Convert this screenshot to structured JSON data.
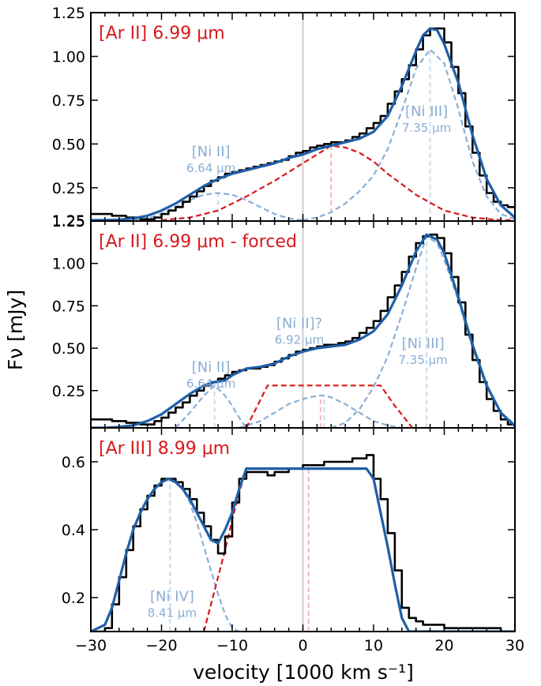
{
  "colors": {
    "observed": "#000000",
    "model_total": "#1f5fa8",
    "nickel_components": "#8aaed6",
    "argon_components": "#d7191c",
    "argon_marker": "#f4b4b4",
    "zero_line": "#cccccc"
  },
  "figure": {
    "xlabel": "velocity [1000 km s⁻¹]",
    "ylabel": "Fν [mJy]"
  },
  "chart_data": [
    {
      "type": "line",
      "panel_label": "[Ar II] 6.99 μm",
      "xlim": [
        -30,
        30
      ],
      "ylim": [
        0.06,
        1.25
      ],
      "yticks": [
        {
          "v": 0.25,
          "label": "0.25"
        },
        {
          "v": 0.5,
          "label": "0.50"
        },
        {
          "v": 0.75,
          "label": "0.75"
        },
        {
          "v": 1.0,
          "label": "1.00"
        },
        {
          "v": 1.25,
          "label": "1.25"
        }
      ],
      "bottom_tick": {
        "v": 0.065,
        "label": "1.25"
      },
      "line_labels": [
        {
          "name": "[Ni II]",
          "wavelength": "6.64 μm",
          "x": -13,
          "y": 0.43
        },
        {
          "name": "[Ni III]",
          "wavelength": "7.35 μm",
          "x": 17.5,
          "y": 0.66
        }
      ],
      "markers": [
        {
          "x": -12,
          "ymax": 0.23,
          "kind": "nickel"
        },
        {
          "x": 4,
          "ymax": 0.49,
          "kind": "argon"
        },
        {
          "x": 18,
          "ymax": 1.04,
          "kind": "nickel"
        }
      ],
      "series": [
        {
          "kind": "observed",
          "step": true,
          "x": [
            -30,
            -27,
            -25,
            -23,
            -21,
            -20,
            -19,
            -18,
            -17,
            -16,
            -15,
            -14,
            -13,
            -12,
            -11,
            -10,
            -9,
            -8,
            -7,
            -6,
            -5,
            -4,
            -3,
            -2,
            -1,
            0,
            1,
            2,
            3,
            4,
            5,
            6,
            7,
            8,
            9,
            10,
            11,
            12,
            13,
            14,
            15,
            16,
            17,
            18,
            19,
            20,
            21,
            22,
            23,
            24,
            25,
            26,
            27,
            28,
            29,
            30
          ],
          "y": [
            0.1,
            0.09,
            0.08,
            0.07,
            0.08,
            0.1,
            0.12,
            0.14,
            0.17,
            0.2,
            0.23,
            0.26,
            0.29,
            0.31,
            0.33,
            0.34,
            0.35,
            0.36,
            0.37,
            0.38,
            0.39,
            0.4,
            0.41,
            0.43,
            0.45,
            0.46,
            0.48,
            0.49,
            0.5,
            0.51,
            0.51,
            0.52,
            0.54,
            0.56,
            0.59,
            0.62,
            0.66,
            0.73,
            0.8,
            0.87,
            0.95,
            1.04,
            1.12,
            1.16,
            1.16,
            1.08,
            0.94,
            0.79,
            0.6,
            0.45,
            0.32,
            0.22,
            0.17,
            0.15,
            0.14,
            0.14
          ]
        },
        {
          "kind": "model_total",
          "x": [
            -30,
            -28,
            -26,
            -24,
            -22,
            -20,
            -18,
            -16,
            -14,
            -12,
            -10,
            -8,
            -6,
            -4,
            -2,
            0,
            2,
            4,
            6,
            8,
            10,
            12,
            14,
            16,
            17,
            18,
            19,
            20,
            22,
            24,
            26,
            28,
            30
          ],
          "y": [
            0.065,
            0.065,
            0.067,
            0.075,
            0.09,
            0.12,
            0.16,
            0.21,
            0.26,
            0.3,
            0.33,
            0.35,
            0.37,
            0.39,
            0.42,
            0.44,
            0.47,
            0.49,
            0.51,
            0.53,
            0.57,
            0.66,
            0.83,
            1.03,
            1.12,
            1.16,
            1.15,
            1.07,
            0.85,
            0.55,
            0.3,
            0.15,
            0.08
          ]
        },
        {
          "kind": "nickel",
          "x": [
            -24,
            -22,
            -20,
            -18,
            -16,
            -14,
            -12,
            -10,
            -8,
            -6,
            -4,
            -2,
            0
          ],
          "y": [
            0.065,
            0.075,
            0.1,
            0.14,
            0.18,
            0.21,
            0.22,
            0.21,
            0.18,
            0.14,
            0.1,
            0.075,
            0.065
          ]
        },
        {
          "kind": "argon",
          "x": [
            -20,
            -16,
            -12,
            -8,
            -4,
            0,
            2,
            4,
            6,
            8,
            10,
            12,
            14,
            16,
            20,
            24,
            28,
            30
          ],
          "y": [
            0.065,
            0.08,
            0.12,
            0.2,
            0.29,
            0.39,
            0.44,
            0.49,
            0.48,
            0.45,
            0.4,
            0.33,
            0.27,
            0.21,
            0.12,
            0.08,
            0.065,
            0.065
          ]
        },
        {
          "kind": "nickel",
          "x": [
            0,
            2,
            4,
            6,
            8,
            10,
            12,
            14,
            16,
            18,
            20,
            22,
            24,
            26,
            28,
            30
          ],
          "y": [
            0.065,
            0.08,
            0.11,
            0.16,
            0.23,
            0.32,
            0.47,
            0.69,
            0.93,
            1.04,
            0.96,
            0.7,
            0.4,
            0.2,
            0.1,
            0.07
          ]
        }
      ]
    },
    {
      "type": "line",
      "panel_label": "[Ar II] 6.99 μm - forced",
      "xlim": [
        -30,
        30
      ],
      "ylim": [
        0.03,
        1.25
      ],
      "yticks": [
        {
          "v": 0.25,
          "label": "0.25"
        },
        {
          "v": 0.5,
          "label": "0.50"
        },
        {
          "v": 0.75,
          "label": "0.75"
        },
        {
          "v": 1.0,
          "label": "1.00"
        },
        {
          "v": 1.25,
          "label": "1.25"
        }
      ],
      "line_labels": [
        {
          "name": "[Ni II]",
          "wavelength": "6.64 μm",
          "x": -13,
          "y": 0.36
        },
        {
          "name": "[Ni II]?",
          "wavelength": "6.92 μm",
          "x": -0.5,
          "y": 0.62
        },
        {
          "name": "[Ni III]",
          "wavelength": "7.35 μm",
          "x": 17,
          "y": 0.5
        }
      ],
      "markers": [
        {
          "x": -12.5,
          "ymax": 0.29,
          "kind": "nickel"
        },
        {
          "x": 2.5,
          "ymax": 0.22,
          "kind": "argon"
        },
        {
          "x": 3,
          "ymax": 0.22,
          "kind": "nickel"
        },
        {
          "x": 17.5,
          "ymax": 1.16,
          "kind": "nickel"
        }
      ],
      "series": [
        {
          "kind": "observed",
          "step": true,
          "x": [
            -30,
            -27,
            -25,
            -23,
            -21,
            -20,
            -19,
            -18,
            -17,
            -16,
            -15,
            -14,
            -13,
            -12,
            -11,
            -10,
            -9,
            -8,
            -7,
            -6,
            -5,
            -4,
            -3,
            -2,
            -1,
            0,
            1,
            2,
            3,
            4,
            5,
            6,
            7,
            8,
            9,
            10,
            11,
            12,
            13,
            14,
            15,
            16,
            17,
            18,
            19,
            20,
            21,
            22,
            23,
            24,
            25,
            26,
            27,
            28,
            29,
            30
          ],
          "y": [
            0.08,
            0.07,
            0.06,
            0.05,
            0.07,
            0.09,
            0.12,
            0.15,
            0.18,
            0.22,
            0.25,
            0.28,
            0.3,
            0.32,
            0.34,
            0.36,
            0.37,
            0.38,
            0.38,
            0.39,
            0.4,
            0.42,
            0.44,
            0.46,
            0.48,
            0.49,
            0.5,
            0.51,
            0.52,
            0.52,
            0.53,
            0.54,
            0.56,
            0.59,
            0.62,
            0.66,
            0.72,
            0.8,
            0.87,
            0.95,
            1.04,
            1.12,
            1.16,
            1.17,
            1.15,
            1.06,
            0.92,
            0.77,
            0.58,
            0.43,
            0.3,
            0.2,
            0.13,
            0.08,
            0.05,
            0.04
          ]
        },
        {
          "kind": "model_total",
          "x": [
            -30,
            -28,
            -26,
            -24,
            -22,
            -20,
            -18,
            -16,
            -14,
            -12.5,
            -11,
            -10,
            -8,
            -6,
            -4,
            -2,
            0,
            2,
            4,
            6,
            8,
            10,
            12,
            14,
            16,
            17.5,
            19,
            20,
            22,
            24,
            26,
            28,
            30
          ],
          "y": [
            0.03,
            0.03,
            0.035,
            0.045,
            0.07,
            0.11,
            0.17,
            0.23,
            0.28,
            0.3,
            0.31,
            0.34,
            0.38,
            0.39,
            0.41,
            0.45,
            0.48,
            0.5,
            0.51,
            0.52,
            0.55,
            0.6,
            0.7,
            0.87,
            1.07,
            1.17,
            1.14,
            1.06,
            0.8,
            0.52,
            0.28,
            0.12,
            0.04
          ]
        },
        {
          "kind": "nickel",
          "x": [
            -18,
            -16,
            -14,
            -12.5,
            -11,
            -10,
            -9,
            -8
          ],
          "y": [
            0.03,
            0.12,
            0.22,
            0.28,
            0.22,
            0.16,
            0.09,
            0.03
          ]
        },
        {
          "kind": "nickel",
          "x": [
            -9,
            -6,
            -4,
            -2,
            0,
            2,
            3,
            4,
            6,
            8,
            10,
            12,
            14
          ],
          "y": [
            0.03,
            0.07,
            0.12,
            0.17,
            0.2,
            0.22,
            0.22,
            0.21,
            0.17,
            0.12,
            0.07,
            0.045,
            0.03
          ]
        },
        {
          "kind": "argon",
          "x": [
            -8,
            -5,
            5,
            11,
            13,
            15.5
          ],
          "y": [
            0.03,
            0.28,
            0.28,
            0.28,
            0.16,
            0.03
          ]
        },
        {
          "kind": "nickel",
          "x": [
            4,
            6,
            8,
            10,
            12,
            14,
            16,
            17.5,
            19,
            20,
            22,
            24,
            26,
            28,
            30
          ],
          "y": [
            0.03,
            0.06,
            0.14,
            0.27,
            0.45,
            0.7,
            0.97,
            1.16,
            1.12,
            1.02,
            0.78,
            0.5,
            0.27,
            0.12,
            0.05
          ]
        }
      ]
    },
    {
      "type": "line",
      "panel_label": "[Ar III] 8.99 μm",
      "xlim": [
        -30,
        30
      ],
      "ylim": [
        0.1,
        0.7
      ],
      "yticks": [
        {
          "v": 0.2,
          "label": "0.2"
        },
        {
          "v": 0.4,
          "label": "0.4"
        },
        {
          "v": 0.6,
          "label": "0.6"
        }
      ],
      "xticks": [
        {
          "v": -30,
          "label": "−30"
        },
        {
          "v": -20,
          "label": "−20"
        },
        {
          "v": -10,
          "label": "−10"
        },
        {
          "v": 0,
          "label": "0"
        },
        {
          "v": 10,
          "label": "10"
        },
        {
          "v": 20,
          "label": "20"
        },
        {
          "v": 30,
          "label": "30"
        }
      ],
      "line_labels": [
        {
          "name": "[Ni IV]",
          "wavelength": "8.41 μm",
          "x": -18.5,
          "y": 0.19
        }
      ],
      "markers": [
        {
          "x": -18.8,
          "ymax": 0.55,
          "kind": "nickel"
        },
        {
          "x": 0.8,
          "ymax": 0.58,
          "kind": "argon"
        }
      ],
      "series": [
        {
          "kind": "observed",
          "step": true,
          "x": [
            -30,
            -28,
            -27,
            -26,
            -25,
            -24,
            -23,
            -22,
            -21,
            -20,
            -19,
            -18,
            -17,
            -16,
            -15,
            -14,
            -13,
            -12,
            -11,
            -10,
            -9,
            -8,
            -7,
            -6,
            -5,
            -4,
            -3,
            -2,
            -1,
            0,
            1,
            2,
            3,
            4,
            5,
            6,
            7,
            8,
            9,
            10,
            11,
            12,
            13,
            14,
            15,
            16,
            17,
            18,
            20,
            22,
            24,
            26,
            28,
            30
          ],
          "y": [
            0.1,
            0.11,
            0.18,
            0.26,
            0.34,
            0.41,
            0.46,
            0.5,
            0.53,
            0.55,
            0.55,
            0.54,
            0.52,
            0.49,
            0.45,
            0.41,
            0.37,
            0.33,
            0.38,
            0.48,
            0.55,
            0.57,
            0.57,
            0.57,
            0.56,
            0.57,
            0.57,
            0.58,
            0.58,
            0.59,
            0.59,
            0.59,
            0.6,
            0.6,
            0.6,
            0.6,
            0.61,
            0.61,
            0.62,
            0.55,
            0.49,
            0.39,
            0.28,
            0.17,
            0.14,
            0.13,
            0.12,
            0.12,
            0.11,
            0.11,
            0.11,
            0.11,
            0.1,
            0.1
          ]
        },
        {
          "kind": "model_total",
          "x": [
            -30,
            -28,
            -27,
            -26,
            -25,
            -24,
            -23,
            -22,
            -21,
            -20,
            -19,
            -18,
            -17,
            -16,
            -15,
            -14,
            -13,
            -12,
            -11,
            -10,
            -9,
            -8,
            -6,
            -4,
            -2,
            0,
            2,
            4,
            6,
            8,
            9,
            10,
            11,
            12,
            13,
            14,
            15,
            16,
            18,
            20,
            25,
            30
          ],
          "y": [
            0.1,
            0.12,
            0.17,
            0.25,
            0.33,
            0.4,
            0.45,
            0.49,
            0.52,
            0.54,
            0.55,
            0.54,
            0.52,
            0.49,
            0.45,
            0.41,
            0.37,
            0.36,
            0.4,
            0.45,
            0.52,
            0.58,
            0.58,
            0.58,
            0.58,
            0.58,
            0.58,
            0.58,
            0.58,
            0.58,
            0.58,
            0.55,
            0.45,
            0.35,
            0.24,
            0.14,
            0.1,
            0.1,
            0.1,
            0.1,
            0.1,
            0.1
          ]
        },
        {
          "kind": "nickel",
          "x": [
            -30,
            -28,
            -27,
            -26,
            -25,
            -24,
            -23,
            -22,
            -21,
            -20,
            -19,
            -18,
            -17,
            -16,
            -15,
            -14,
            -13,
            -12,
            -11,
            -10,
            -9
          ],
          "y": [
            0.1,
            0.12,
            0.17,
            0.25,
            0.33,
            0.4,
            0.45,
            0.49,
            0.52,
            0.54,
            0.55,
            0.54,
            0.52,
            0.48,
            0.42,
            0.35,
            0.28,
            0.21,
            0.15,
            0.11,
            0.1
          ]
        },
        {
          "kind": "argon",
          "x": [
            -14,
            -13,
            -12,
            -11,
            -10,
            -9,
            -8,
            9,
            10,
            11,
            12,
            13,
            14,
            15
          ],
          "y": [
            0.1,
            0.18,
            0.26,
            0.34,
            0.43,
            0.51,
            0.58,
            0.58,
            0.55,
            0.45,
            0.35,
            0.24,
            0.14,
            0.1
          ]
        }
      ]
    }
  ]
}
